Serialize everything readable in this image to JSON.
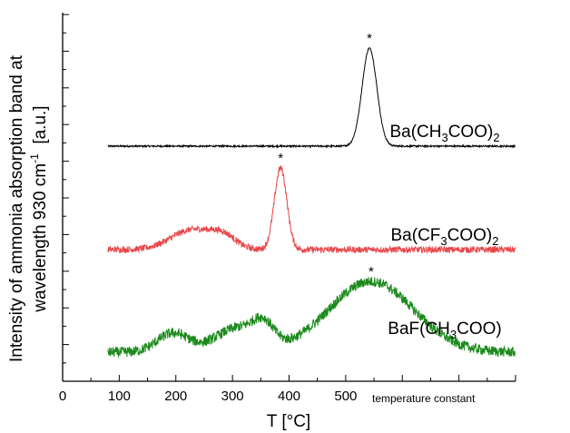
{
  "chart_data": {
    "type": "line",
    "xlabel": "T [°C]",
    "ylabel_line1": "Intensity of ammonia absorption band at",
    "ylabel_line2_prefix": "wavelength 930 cm",
    "ylabel_line2_sup": "-1",
    "ylabel_line2_suffix": "  [a.u.]",
    "xlim": [
      0,
      800
    ],
    "x_ticks": [
      "0",
      "100",
      "200",
      "300",
      "400",
      "500"
    ],
    "x_tick_values": [
      0,
      100,
      200,
      300,
      400,
      500
    ],
    "y_tick_labels": "none",
    "annotation": "temperature constant",
    "peak_marker": "*",
    "series": [
      {
        "label_parts": [
          "Ba(CH",
          "3",
          "COO)",
          "2"
        ],
        "color": "#000000",
        "x_start": 80,
        "x_end": 800,
        "baseline": 0,
        "noise": 0.008,
        "components": [
          {
            "center": 542,
            "amp": 1.0,
            "sigma": 13
          }
        ],
        "peak_x": 542
      },
      {
        "label_parts": [
          "Ba(CF",
          "3",
          "COO)",
          "2"
        ],
        "color": "#e8474a",
        "x_start": 80,
        "x_end": 800,
        "baseline": 0,
        "noise": 0.035,
        "components": [
          {
            "center": 230,
            "amp": 0.22,
            "sigma": 38
          },
          {
            "center": 285,
            "amp": 0.12,
            "sigma": 22
          },
          {
            "center": 385,
            "amp": 0.9,
            "sigma": 11
          }
        ],
        "peak_x": 385
      },
      {
        "label_parts": [
          "BaF(CH",
          "3",
          "COO)",
          ""
        ],
        "color": "#1a8a1a",
        "x_start": 80,
        "x_end": 800,
        "baseline": 0,
        "noise": 0.06,
        "components": [
          {
            "center": 195,
            "amp": 0.22,
            "sigma": 28
          },
          {
            "center": 310,
            "amp": 0.28,
            "sigma": 40
          },
          {
            "center": 355,
            "amp": 0.22,
            "sigma": 18
          },
          {
            "center": 545,
            "amp": 0.82,
            "sigma": 75
          }
        ],
        "peak_x": 545
      }
    ]
  }
}
